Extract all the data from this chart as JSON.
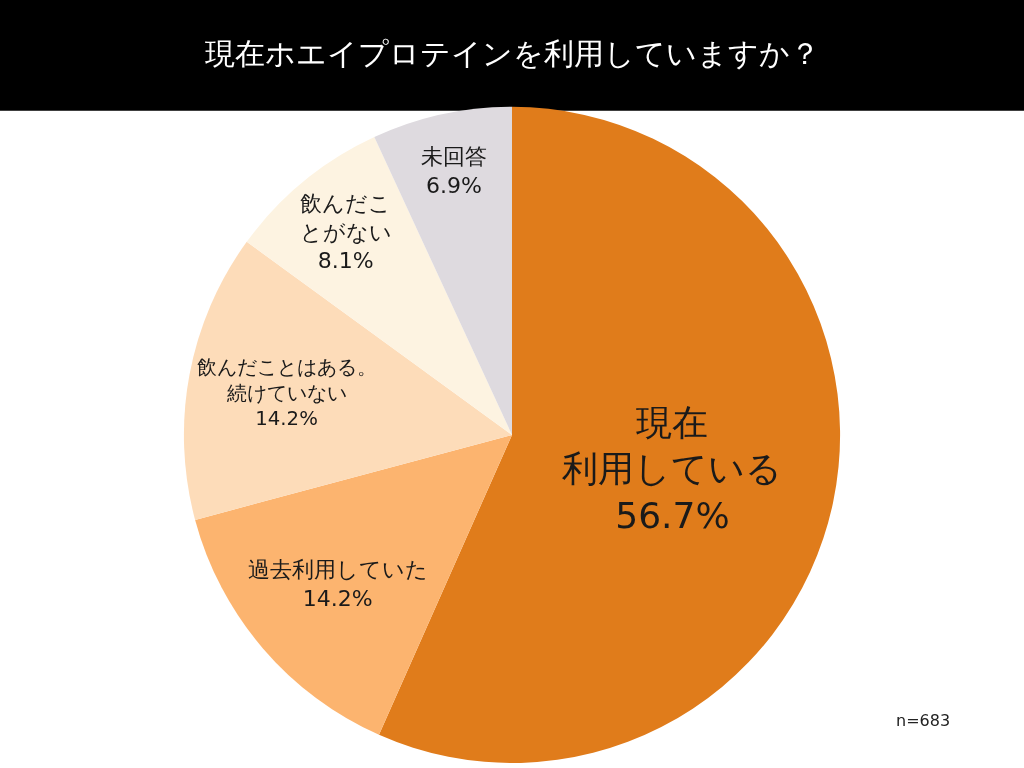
{
  "chart_data": {
    "type": "pie",
    "title": "現在ホエイプロテインを利用していますか？",
    "categories": [
      "現在利用している",
      "過去利用していた",
      "飲んだことはある。続けていない",
      "飲んだことがない",
      "未回答"
    ],
    "values": [
      56.7,
      14.2,
      14.2,
      8.1,
      6.9
    ],
    "value_labels": [
      "56.7%",
      "14.2%",
      "14.2%",
      "8.1%",
      "6.9%"
    ],
    "colors": [
      "#e07c1b",
      "#fcb46f",
      "#fddcb9",
      "#fdf3e1",
      "#dedadf"
    ],
    "annotations": [
      "n=683"
    ]
  }
}
